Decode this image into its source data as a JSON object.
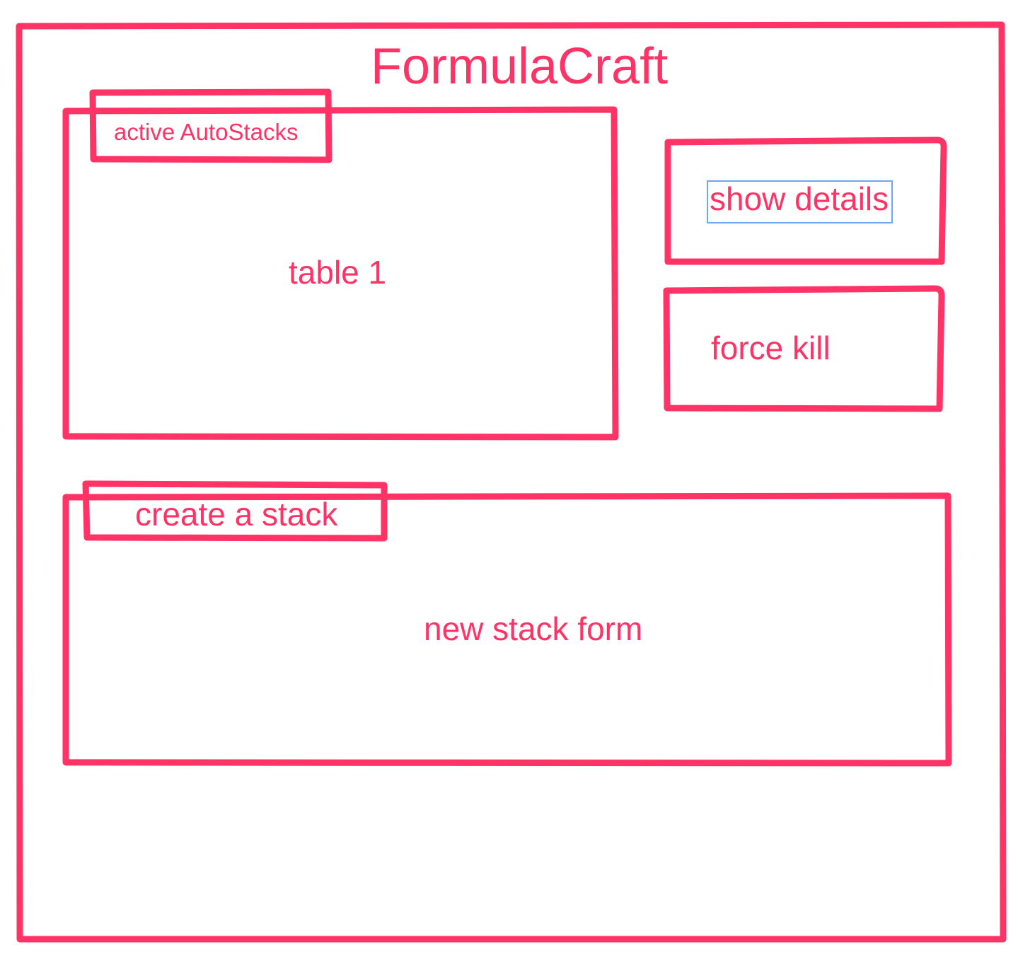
{
  "app": {
    "title": "FormulaCraft"
  },
  "autostacks_panel": {
    "tab_label": "active AutoStacks",
    "table_label": "table 1"
  },
  "actions": {
    "show_details_label": "show details",
    "force_kill_label": "force kill"
  },
  "create_panel": {
    "tab_label": "create a stack",
    "form_label": "new stack form"
  },
  "colors": {
    "sketch_stroke": "#ff3366",
    "selection_outline": "#6fa8f0",
    "background": "#ffffff"
  }
}
